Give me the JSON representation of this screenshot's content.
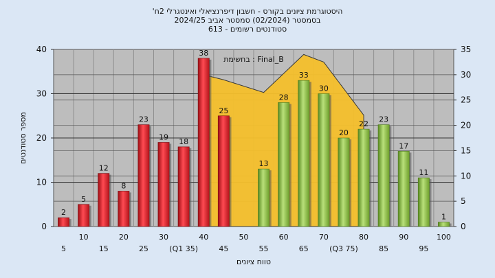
{
  "chart_data": {
    "type": "bar",
    "title_lines": [
      "'היסטוגרמת ציונים בקורס - חשבון דיפרנציאלי ואינטגרלי 2ח",
      "בסמסטר  (02/2024)  סמסטר אביב 2024/25",
      "סטודנטים רשומים - 613"
    ],
    "legend_text": "בחשימת : Final_B",
    "xlabel": "טווח ציונים",
    "ylabel": "מספר סטודנטים",
    "ylim": [
      0,
      40
    ],
    "y_ticks": [
      0,
      10,
      20,
      30,
      40
    ],
    "y2lim": [
      0,
      35
    ],
    "y2_ticks": [
      0,
      5,
      10,
      15,
      20,
      25,
      30,
      35
    ],
    "categories": [
      5,
      10,
      15,
      20,
      25,
      30,
      35,
      40,
      45,
      50,
      55,
      60,
      65,
      70,
      75,
      80,
      85,
      90,
      95,
      100
    ],
    "x_labels_upper": [
      "10",
      "20",
      "30",
      "40",
      "50",
      "60",
      "70",
      "80",
      "90",
      "100"
    ],
    "x_labels_lower": [
      "5",
      "15",
      "25",
      "(Q1 35)",
      "45",
      "55",
      "65",
      "(Q3 75)",
      "85",
      "95"
    ],
    "values": [
      2,
      5,
      12,
      8,
      23,
      19,
      18,
      38,
      25,
      null,
      13,
      28,
      33,
      30,
      20,
      22,
      23,
      17,
      11,
      1
    ],
    "labels": [
      "2",
      "5",
      "12",
      "8",
      "23",
      "19",
      "18",
      "38",
      "25",
      "",
      "13",
      "28",
      "33",
      "30",
      "20",
      "22",
      "23",
      "17",
      "11",
      "1"
    ],
    "fail_color": "#e0202a",
    "pass_color": "#8bc34a",
    "curve_color": "#f5c02c",
    "curve_values": [
      {
        "x": 40,
        "y": 30
      },
      {
        "x": 45,
        "y": 29
      },
      {
        "x": 55,
        "y": 26.5
      },
      {
        "x": 65,
        "y": 34
      },
      {
        "x": 70,
        "y": 32.5
      },
      {
        "x": 80,
        "y": 22
      }
    ],
    "grid": true
  }
}
